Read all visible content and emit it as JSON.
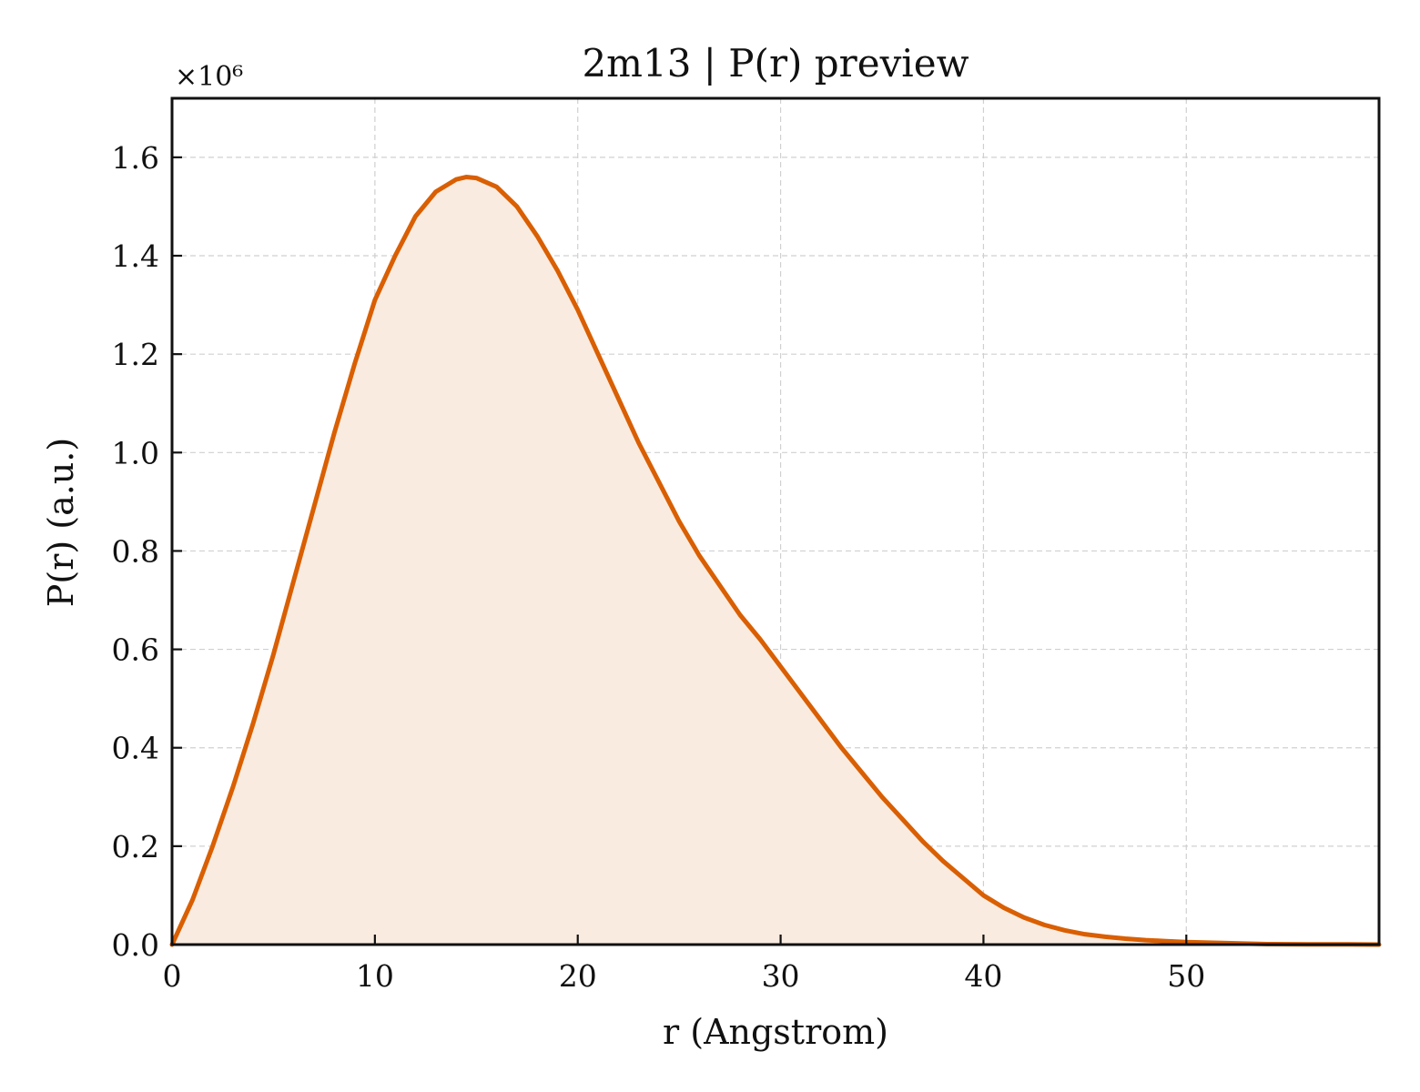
{
  "chart_data": {
    "type": "area",
    "title": "2m13 | P(r) preview",
    "xlabel": "r (Angstrom)",
    "ylabel": "P(r) (a.u.)",
    "y_multiplier_label": "×10⁶",
    "xlim": [
      0,
      59.5
    ],
    "ylim": [
      0,
      1.72
    ],
    "y_scale_factor": 1000000,
    "xticks": [
      0,
      10,
      20,
      30,
      40,
      50
    ],
    "xtick_labels": [
      "0",
      "10",
      "20",
      "30",
      "40",
      "50"
    ],
    "yticks": [
      0.0,
      0.2,
      0.4,
      0.6,
      0.8,
      1.0,
      1.2,
      1.4,
      1.6
    ],
    "ytick_labels": [
      "0.0",
      "0.2",
      "0.4",
      "0.6",
      "0.8",
      "1.0",
      "1.2",
      "1.4",
      "1.6"
    ],
    "grid": true,
    "line_color": "#d95f02",
    "fill_color": "#f9ebe0",
    "series": [
      {
        "x": [
          0,
          1,
          2,
          3,
          4,
          5,
          6,
          7,
          8,
          9,
          10,
          11,
          12,
          13,
          14,
          14.5,
          15,
          16,
          17,
          18,
          19,
          20,
          21,
          22,
          23,
          24,
          25,
          26,
          27,
          28,
          29,
          30,
          31,
          32,
          33,
          34,
          35,
          36,
          37,
          38,
          39,
          40,
          41,
          42,
          43,
          44,
          45,
          46,
          47,
          48,
          49,
          50,
          52,
          54,
          56,
          58,
          59.5
        ],
        "y": [
          0.0,
          0.09,
          0.2,
          0.32,
          0.45,
          0.59,
          0.74,
          0.89,
          1.04,
          1.18,
          1.31,
          1.4,
          1.48,
          1.53,
          1.555,
          1.56,
          1.558,
          1.54,
          1.5,
          1.44,
          1.37,
          1.29,
          1.2,
          1.11,
          1.02,
          0.94,
          0.86,
          0.79,
          0.73,
          0.67,
          0.62,
          0.565,
          0.51,
          0.455,
          0.4,
          0.35,
          0.3,
          0.255,
          0.21,
          0.17,
          0.135,
          0.1,
          0.075,
          0.055,
          0.04,
          0.029,
          0.021,
          0.016,
          0.012,
          0.009,
          0.007,
          0.005,
          0.003,
          0.001,
          0.0005,
          0.0005,
          0.0
        ]
      }
    ]
  }
}
